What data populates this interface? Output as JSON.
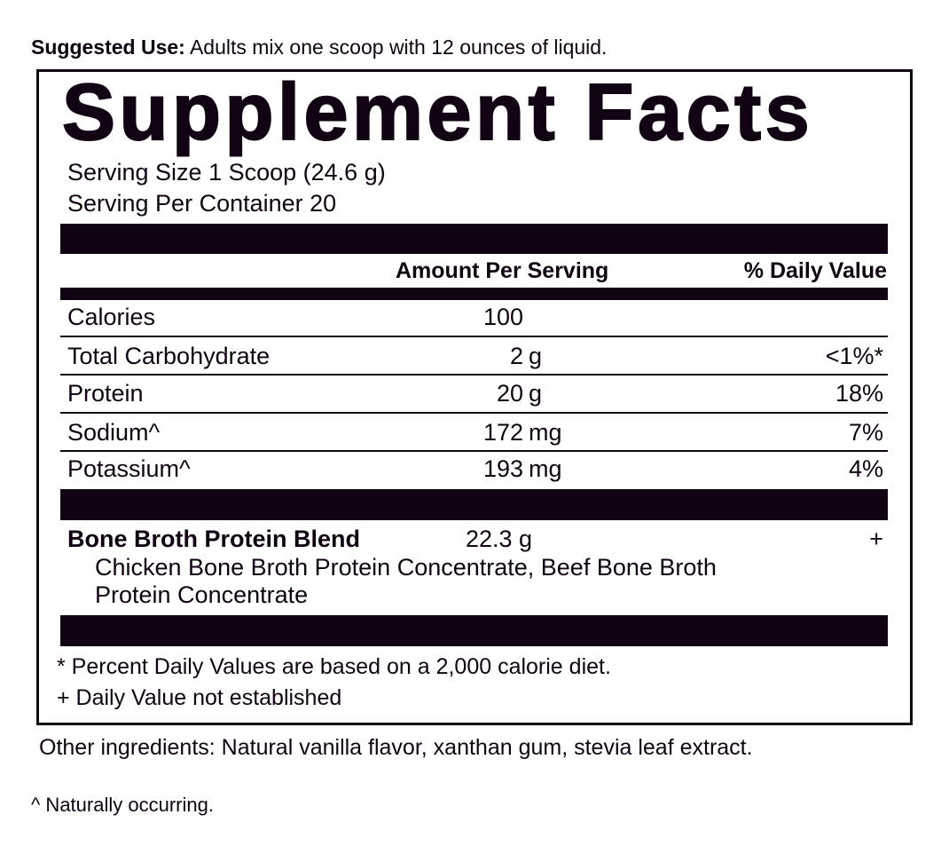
{
  "suggested_use": {
    "label": "Suggested Use:",
    "text": " Adults mix one scoop with 12 ounces of liquid."
  },
  "title": "Supplement Facts",
  "serving_size": "Serving Size 1 Scoop (24.6 g)",
  "servings_per_container": "Serving Per Container 20",
  "header": {
    "amount": "Amount Per Serving",
    "dv": "% Daily Value"
  },
  "nutrients": [
    {
      "name": "Calories",
      "num": "100",
      "unit": "",
      "dv": ""
    },
    {
      "name": "Total Carbohydrate",
      "num": "2",
      "unit": "g",
      "dv": "<1%*"
    },
    {
      "name": "Protein",
      "num": "20",
      "unit": "g",
      "dv": "18%"
    },
    {
      "name": "Sodium^",
      "num": "172",
      "unit": "mg",
      "dv": "7%"
    },
    {
      "name": "Potassium^",
      "num": "193",
      "unit": "mg",
      "dv": "4%"
    }
  ],
  "blend": {
    "name": "Bone Broth Protein Blend",
    "amount": "22.3 g",
    "dv": "+",
    "line1": "Chicken Bone Broth Protein Concentrate, Beef Bone Broth",
    "line2": "Protein Concentrate"
  },
  "footnotes": [
    "* Percent Daily Values are based on a 2,000 calorie diet.",
    "+ Daily Value not established"
  ],
  "other_ingredients": "Other ingredients: Natural vanilla flavor, xanthan gum, stevia leaf extract.",
  "naturally_occurring": "^ Naturally occurring.",
  "colors": {
    "ink": "#120314"
  }
}
